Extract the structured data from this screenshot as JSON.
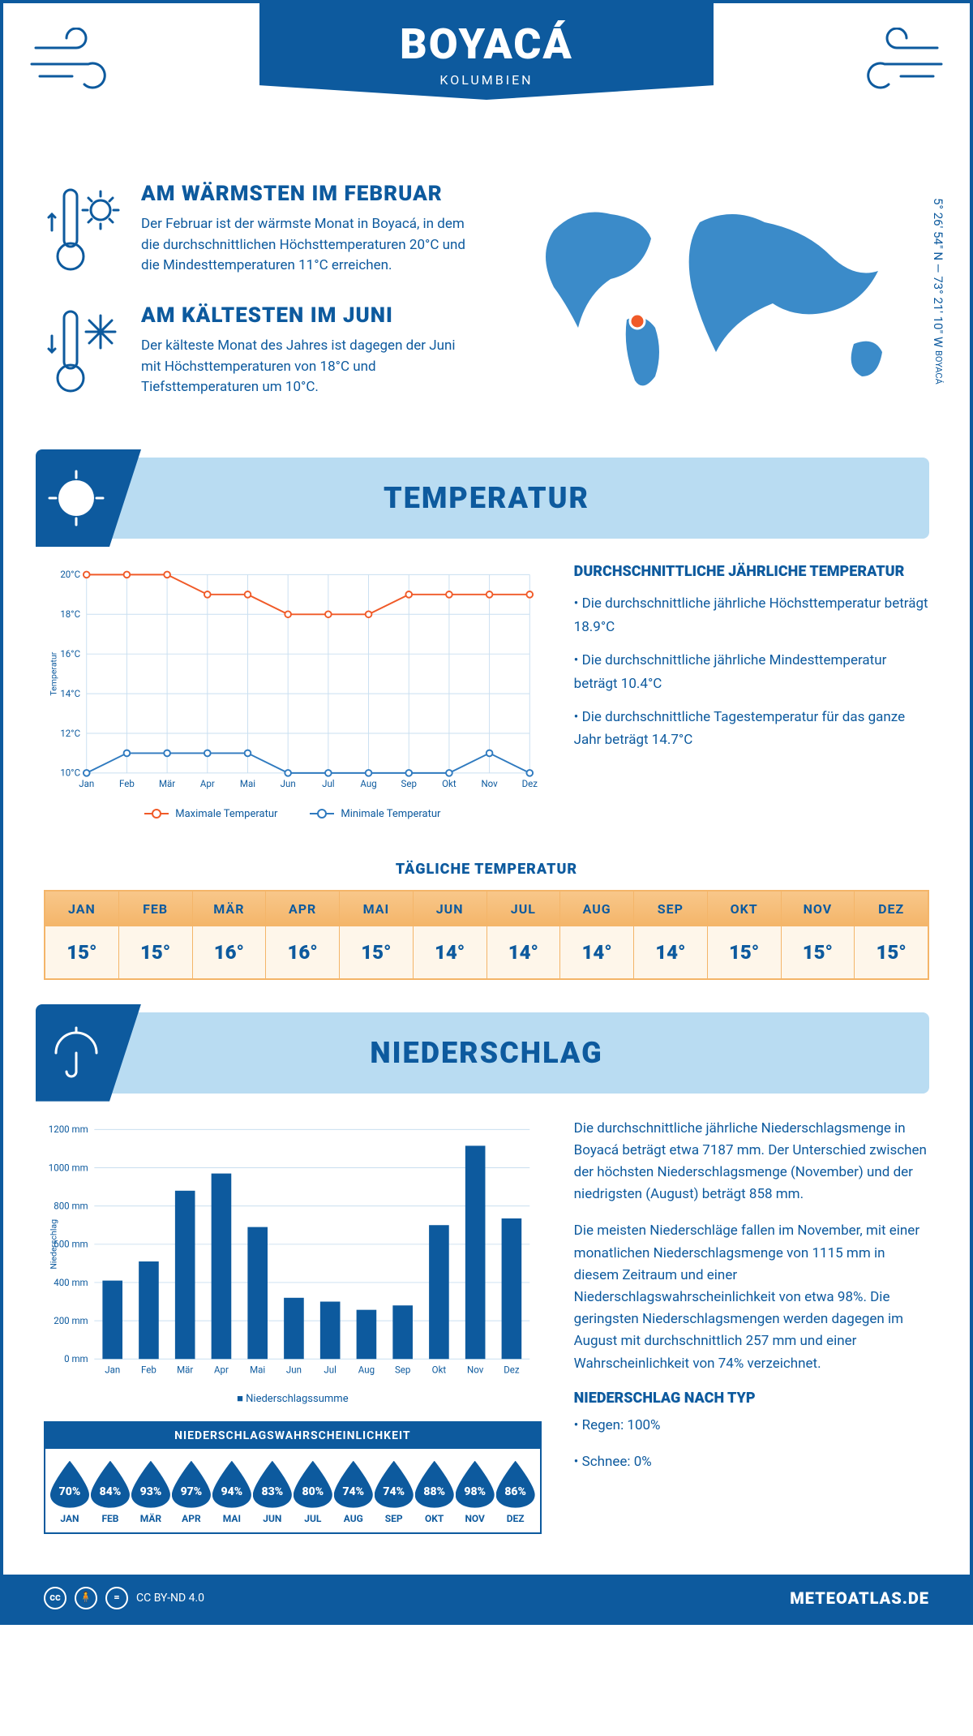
{
  "header": {
    "title": "BOYACÁ",
    "subtitle": "KOLUMBIEN",
    "coords": "5° 26' 54\" N — 73° 21' 10\" W",
    "location_label": "BOYACÁ"
  },
  "colors": {
    "primary": "#0d5a9e",
    "light_blue": "#b9dcf2",
    "pale_blue": "#e8f2fa",
    "orange_header_top": "#f8c78a",
    "orange_header_bot": "#f4b569",
    "orange_body": "#fef6ea",
    "max_line": "#f05a28",
    "min_line": "#2f7abf",
    "grid": "#c9dff0",
    "white": "#ffffff"
  },
  "facts": {
    "warm": {
      "title": "AM WÄRMSTEN IM FEBRUAR",
      "text": "Der Februar ist der wärmste Monat in Boyacá, in dem die durchschnittlichen Höchsttemperaturen 20°C und die Mindesttemperaturen 11°C erreichen."
    },
    "cold": {
      "title": "AM KÄLTESTEN IM JUNI",
      "text": "Der kälteste Monat des Jahres ist dagegen der Juni mit Höchsttemperaturen von 18°C und Tiefsttemperaturen um 10°C."
    }
  },
  "temp_section": {
    "title": "TEMPERATUR",
    "chart": {
      "type": "line",
      "months": [
        "Jan",
        "Feb",
        "Mär",
        "Apr",
        "Mai",
        "Jun",
        "Jul",
        "Aug",
        "Sep",
        "Okt",
        "Nov",
        "Dez"
      ],
      "max_values": [
        20,
        20,
        20,
        19,
        19,
        18,
        18,
        18,
        19,
        19,
        19,
        19
      ],
      "min_values": [
        10,
        11,
        11,
        11,
        11,
        10,
        10,
        10,
        10,
        10,
        11,
        10
      ],
      "ylim": [
        10,
        20
      ],
      "ytick_step": 2,
      "y_label": "Temperatur",
      "y_tick_suffix": "°C",
      "max_color": "#f05a28",
      "min_color": "#2f7abf",
      "marker_radius": 4,
      "line_width": 2,
      "grid_color": "#c9dff0",
      "background": "#ffffff"
    },
    "legend": {
      "max": "Maximale Temperatur",
      "min": "Minimale Temperatur"
    },
    "info": {
      "title": "DURCHSCHNITTLICHE JÄHRLICHE TEMPERATUR",
      "b1": "• Die durchschnittliche jährliche Höchsttemperatur beträgt 18.9°C",
      "b2": "• Die durchschnittliche jährliche Mindesttemperatur beträgt 10.4°C",
      "b3": "• Die durchschnittliche Tagestemperatur für das ganze Jahr beträgt 14.7°C"
    },
    "daily": {
      "title": "TÄGLICHE TEMPERATUR",
      "months": [
        "JAN",
        "FEB",
        "MÄR",
        "APR",
        "MAI",
        "JUN",
        "JUL",
        "AUG",
        "SEP",
        "OKT",
        "NOV",
        "DEZ"
      ],
      "values": [
        "15°",
        "15°",
        "16°",
        "16°",
        "15°",
        "14°",
        "14°",
        "14°",
        "14°",
        "15°",
        "15°",
        "15°"
      ]
    }
  },
  "precip_section": {
    "title": "NIEDERSCHLAG",
    "chart": {
      "type": "bar",
      "months": [
        "Jan",
        "Feb",
        "Mär",
        "Apr",
        "Mai",
        "Jun",
        "Jul",
        "Aug",
        "Sep",
        "Okt",
        "Nov",
        "Dez"
      ],
      "values": [
        410,
        510,
        880,
        970,
        690,
        320,
        300,
        257,
        280,
        700,
        1115,
        735
      ],
      "ylim": [
        0,
        1200
      ],
      "ytick_step": 200,
      "y_label": "Niederschlag",
      "y_tick_suffix": " mm",
      "bar_color": "#0d5a9e",
      "grid_color": "#c9dff0",
      "bar_width_ratio": 0.55,
      "background": "#ffffff"
    },
    "legend": "Niederschlagssumme",
    "text": {
      "p1": "Die durchschnittliche jährliche Niederschlagsmenge in Boyacá beträgt etwa 7187 mm. Der Unterschied zwischen der höchsten Niederschlagsmenge (November) und der niedrigsten (August) beträgt 858 mm.",
      "p2": "Die meisten Niederschläge fallen im November, mit einer monatlichen Niederschlagsmenge von 1115 mm in diesem Zeitraum und einer Niederschlagswahrscheinlichkeit von etwa 98%. Die geringsten Niederschlagsmengen werden dagegen im August mit durchschnittlich 257 mm und einer Wahrscheinlichkeit von 74% verzeichnet.",
      "type_title": "NIEDERSCHLAG NACH TYP",
      "rain": "• Regen: 100%",
      "snow": "• Schnee: 0%"
    },
    "probability": {
      "title": "NIEDERSCHLAGSWAHRSCHEINLICHKEIT",
      "months": [
        "JAN",
        "FEB",
        "MÄR",
        "APR",
        "MAI",
        "JUN",
        "JUL",
        "AUG",
        "SEP",
        "OKT",
        "NOV",
        "DEZ"
      ],
      "values": [
        "70%",
        "84%",
        "93%",
        "97%",
        "94%",
        "83%",
        "80%",
        "74%",
        "74%",
        "88%",
        "98%",
        "86%"
      ]
    }
  },
  "footer": {
    "license": "CC BY-ND 4.0",
    "site": "METEOATLAS.DE"
  }
}
